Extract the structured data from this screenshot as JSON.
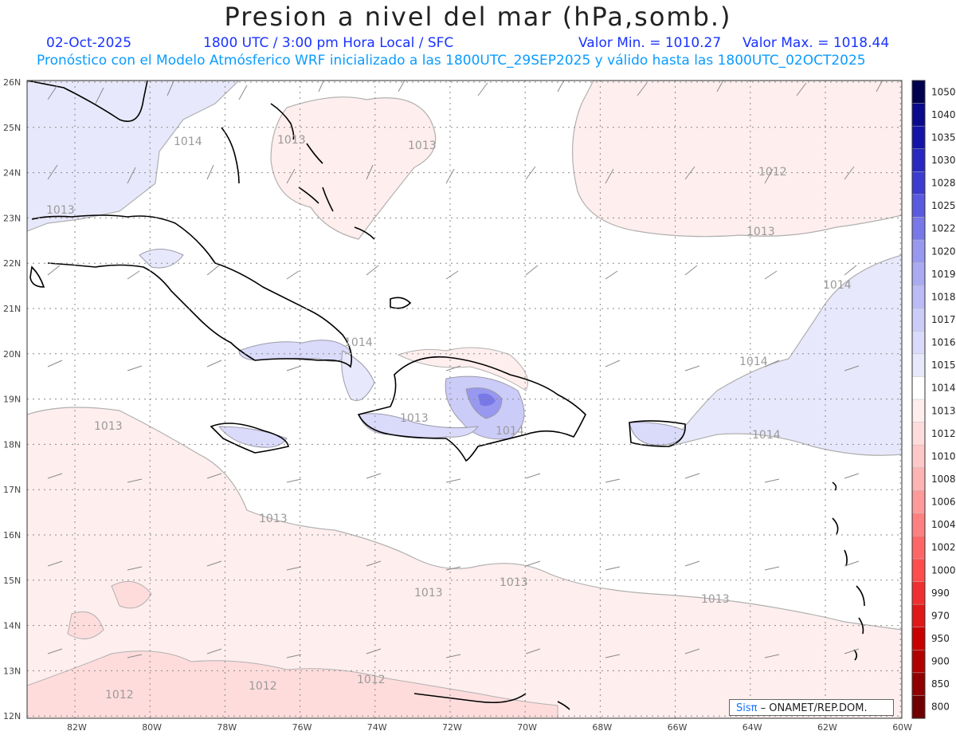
{
  "header": {
    "title": "Presion a nivel del mar (hPa,somb.)",
    "date": "02-Oct-2025",
    "time": "1800 UTC / 3:00 pm Hora Local / SFC",
    "min": "Valor Min. = 1010.27",
    "max": "Valor Max. = 1018.44",
    "subtitle": "Pronóstico con el Modelo Atmósferico WRF inicializado a las 1800UTC_29SEP2025 y válido hasta las  1800UTC_02OCT2025"
  },
  "map": {
    "lat_labels": [
      "26N",
      "25N",
      "24N",
      "23N",
      "22N",
      "21N",
      "20N",
      "19N",
      "18N",
      "17N",
      "16N",
      "15N",
      "14N",
      "13N",
      "12N"
    ],
    "lon_labels": [
      "82W",
      "80W",
      "78W",
      "76W",
      "74W",
      "72W",
      "70W",
      "68W",
      "66W",
      "64W",
      "62W",
      "60W"
    ],
    "contour_labels": [
      {
        "text": "1014",
        "region": "northwest"
      },
      {
        "text": "1013",
        "region": "northwest-edge"
      },
      {
        "text": "1013",
        "region": "bahamas"
      },
      {
        "text": "1013",
        "region": "bahamas-east"
      },
      {
        "text": "1012",
        "region": "atlantic-north"
      },
      {
        "text": "1013",
        "region": "atlantic-north-south"
      },
      {
        "text": "1014",
        "region": "atlantic-east"
      },
      {
        "text": "1014",
        "region": "atlantic-southeast"
      },
      {
        "text": "1014",
        "region": "puerto-rico-east"
      },
      {
        "text": "1014",
        "region": "haiti-north"
      },
      {
        "text": "1013",
        "region": "caribbean-southwest"
      },
      {
        "text": "1013",
        "region": "caribbean-central"
      },
      {
        "text": "1013",
        "region": "caribbean-south"
      },
      {
        "text": "1013",
        "region": "caribbean-south-2"
      },
      {
        "text": "1013",
        "region": "caribbean-southeast"
      },
      {
        "text": "1012",
        "region": "colombia-west"
      },
      {
        "text": "1012",
        "region": "colombia-central"
      },
      {
        "text": "1012",
        "region": "colombia-east"
      },
      {
        "text": "1013",
        "region": "hispaniola-south"
      },
      {
        "text": "1014",
        "region": "hispaniola-east"
      }
    ]
  },
  "legend": {
    "levels": [
      "1050",
      "1040",
      "1035",
      "1030",
      "1028",
      "1025",
      "1022",
      "1020",
      "1019",
      "1018",
      "1017",
      "1016",
      "1015",
      "1014",
      "1013",
      "1012",
      "1010",
      "1008",
      "1006",
      "1004",
      "1002",
      "1000",
      "990",
      "970",
      "950",
      "900",
      "850",
      "800"
    ],
    "colors": [
      "#000050",
      "#0a0a8c",
      "#1414a8",
      "#2828c0",
      "#3c3cd0",
      "#5a5ae0",
      "#7878e8",
      "#9898f0",
      "#aaaaf2",
      "#bbbbf5",
      "#ccccf8",
      "#dadafa",
      "#e8e8fc",
      "#ffffff",
      "#ffeeee",
      "#ffdcdc",
      "#ffc8c8",
      "#ffb4b4",
      "#ff9a9a",
      "#ff8080",
      "#ff6666",
      "#ff4c4c",
      "#f03030",
      "#e01818",
      "#c80000",
      "#b00000",
      "#900000",
      "#700000"
    ]
  },
  "credit": {
    "sis": "Sisπ",
    "org": "– ONAMET/REP.DOM."
  }
}
